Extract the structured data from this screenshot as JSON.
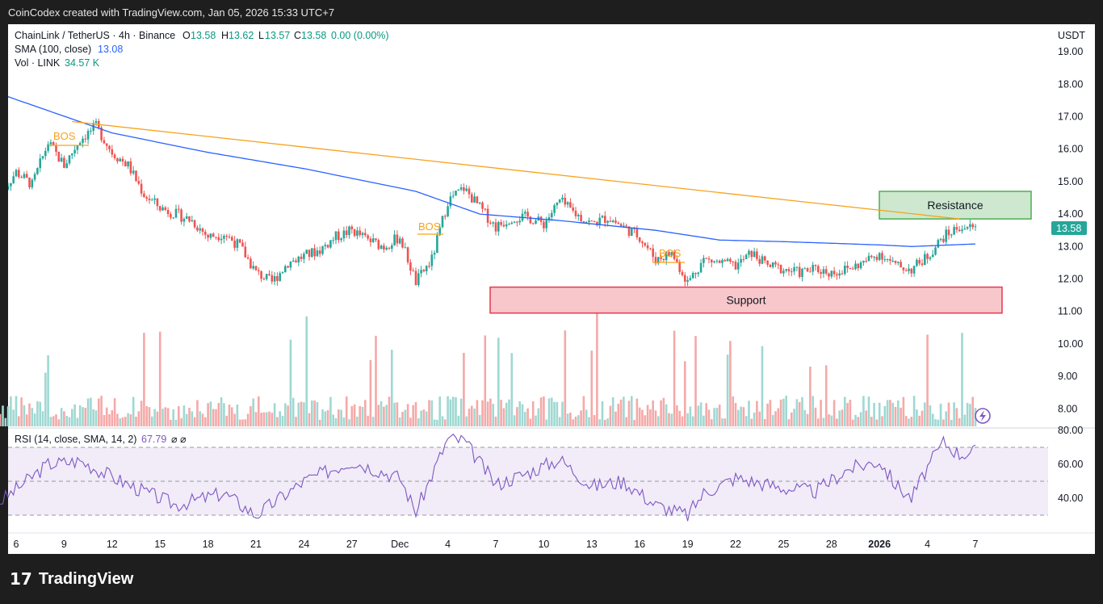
{
  "header": {
    "credit": "CoinCodex created with TradingView.com, Jan 05, 2026 15:33 UTC+7"
  },
  "legend": {
    "symbol": "ChainLink / TetherUS · 4h · Binance",
    "o_label": "O",
    "o_value": "13.58",
    "h_label": "H",
    "h_value": "13.62",
    "l_label": "L",
    "l_value": "13.57",
    "c_label": "C",
    "c_value": "13.58",
    "change": "0.00 (0.00%)",
    "sma_label": "SMA (100, close)",
    "sma_value": "13.08",
    "vol_label": "Vol · LINK",
    "vol_value": "34.57 K",
    "rsi_label": "RSI (14, close, SMA, 14, 2)",
    "rsi_value": "67.79",
    "rsi_extra": "⌀ ⌀"
  },
  "currency": "USDT",
  "last_price": "13.58",
  "colors": {
    "up": "#26a69a",
    "down": "#ef5350",
    "sma": "#2962ff",
    "trendline": "#f7a21b",
    "rsi": "#7e57c2"
  },
  "annotations": {
    "bos": "BOS",
    "resistance": "Resistance",
    "support": "Support"
  },
  "footer": {
    "brand": "TradingView"
  },
  "chart_data": {
    "type": "candlestick",
    "x_ticks": [
      "6",
      "9",
      "12",
      "15",
      "18",
      "21",
      "24",
      "27",
      "Dec",
      "4",
      "7",
      "10",
      "13",
      "16",
      "19",
      "22",
      "25",
      "28",
      "2026",
      "4",
      "7"
    ],
    "y_ticks": [
      "19.00",
      "18.00",
      "17.00",
      "16.00",
      "15.00",
      "14.00",
      "13.00",
      "12.00",
      "11.00",
      "10.00",
      "9.00",
      "8.00"
    ],
    "ylim": [
      7.5,
      19.5
    ],
    "price_path": [
      [
        "Nov 5",
        14.6
      ],
      [
        "Nov 6",
        15.3
      ],
      [
        "Nov 7",
        14.9
      ],
      [
        "Nov 8",
        16.2
      ],
      [
        "Nov 9",
        15.5
      ],
      [
        "Nov 10",
        16.3
      ],
      [
        "Nov 11",
        16.7
      ],
      [
        "Nov 12",
        15.9
      ],
      [
        "Nov 13",
        15.5
      ],
      [
        "Nov 14",
        14.6
      ],
      [
        "Nov 15",
        14.2
      ],
      [
        "Nov 16",
        14.0
      ],
      [
        "Nov 17",
        13.8
      ],
      [
        "Nov 18",
        13.3
      ],
      [
        "Nov 19",
        13.4
      ],
      [
        "Nov 20",
        13.0
      ],
      [
        "Nov 21",
        12.2
      ],
      [
        "Nov 22",
        11.9
      ],
      [
        "Nov 23",
        12.5
      ],
      [
        "Nov 24",
        12.7
      ],
      [
        "Nov 25",
        12.9
      ],
      [
        "Nov 26",
        13.3
      ],
      [
        "Nov 27",
        13.5
      ],
      [
        "Nov 28",
        13.2
      ],
      [
        "Nov 29",
        13.0
      ],
      [
        "Nov 30",
        13.3
      ],
      [
        "Dec 1",
        11.9
      ],
      [
        "Dec 2",
        12.6
      ],
      [
        "Dec 3",
        14.4
      ],
      [
        "Dec 4",
        14.8
      ],
      [
        "Dec 5",
        14.2
      ],
      [
        "Dec 6",
        13.6
      ],
      [
        "Dec 7",
        13.9
      ],
      [
        "Dec 8",
        13.9
      ],
      [
        "Dec 9",
        13.7
      ],
      [
        "Dec 10",
        14.4
      ],
      [
        "Dec 11",
        14.0
      ],
      [
        "Dec 12",
        13.7
      ],
      [
        "Dec 13",
        13.9
      ],
      [
        "Dec 14",
        13.6
      ],
      [
        "Dec 15",
        13.3
      ],
      [
        "Dec 16",
        12.6
      ],
      [
        "Dec 17",
        12.8
      ],
      [
        "Dec 18",
        11.9
      ],
      [
        "Dec 19",
        12.6
      ],
      [
        "Dec 20",
        12.5
      ],
      [
        "Dec 21",
        12.4
      ],
      [
        "Dec 22",
        12.8
      ],
      [
        "Dec 23",
        12.4
      ],
      [
        "Dec 24",
        12.3
      ],
      [
        "Dec 25",
        12.2
      ],
      [
        "Dec 26",
        12.3
      ],
      [
        "Dec 27",
        12.2
      ],
      [
        "Dec 28",
        12.3
      ],
      [
        "Dec 29",
        12.5
      ],
      [
        "Dec 30",
        12.8
      ],
      [
        "Dec 31",
        12.4
      ],
      [
        "Jan 1",
        12.3
      ],
      [
        "Jan 2",
        12.7
      ],
      [
        "Jan 3",
        13.3
      ],
      [
        "Jan 4",
        13.6
      ],
      [
        "Jan 5",
        13.58
      ]
    ],
    "sma_path": [
      [
        "Nov 5",
        17.7
      ],
      [
        "Nov 12",
        16.5
      ],
      [
        "Nov 18",
        15.9
      ],
      [
        "Nov 24",
        15.4
      ],
      [
        "Dec 1",
        14.7
      ],
      [
        "Dec 5",
        14.0
      ],
      [
        "Dec 10",
        13.8
      ],
      [
        "Dec 16",
        13.5
      ],
      [
        "Dec 20",
        13.2
      ],
      [
        "Dec 24",
        13.15
      ],
      [
        "Dec 30",
        13.05
      ],
      [
        "Jan 1",
        13.0
      ],
      [
        "Jan 5",
        13.08
      ]
    ],
    "rsi_path": [
      [
        "Nov 5",
        38
      ],
      [
        "Nov 8",
        60
      ],
      [
        "Nov 10",
        62
      ],
      [
        "Nov 13",
        48
      ],
      [
        "Nov 16",
        36
      ],
      [
        "Nov 19",
        43
      ],
      [
        "Nov 21",
        30
      ],
      [
        "Nov 24",
        50
      ],
      [
        "Nov 27",
        62
      ],
      [
        "Nov 30",
        52
      ],
      [
        "Dec 1",
        32
      ],
      [
        "Dec 3",
        75
      ],
      [
        "Dec 4",
        74
      ],
      [
        "Dec 6",
        48
      ],
      [
        "Dec 8",
        55
      ],
      [
        "Dec 10",
        63
      ],
      [
        "Dec 12",
        47
      ],
      [
        "Dec 14",
        50
      ],
      [
        "Dec 16",
        36
      ],
      [
        "Dec 18",
        30
      ],
      [
        "Dec 19",
        43
      ],
      [
        "Dec 21",
        52
      ],
      [
        "Dec 24",
        46
      ],
      [
        "Dec 26",
        44
      ],
      [
        "Dec 28",
        57
      ],
      [
        "Dec 30",
        62
      ],
      [
        "Dec 31",
        48
      ],
      [
        "Jan 1",
        40
      ],
      [
        "Jan 2",
        58
      ],
      [
        "Jan 3",
        73
      ],
      [
        "Jan 4",
        66
      ],
      [
        "Jan 5",
        67.79
      ]
    ],
    "rsi_levels": [
      30,
      50,
      70
    ],
    "rsi_ticks": [
      "80.00",
      "60.00",
      "40.00"
    ],
    "resistance_zone": [
      13.85,
      14.7
    ],
    "support_zone": [
      10.95,
      11.75
    ],
    "trendline": [
      [
        "Nov 10",
        16.85
      ],
      [
        "Jan 4",
        13.85
      ]
    ]
  }
}
